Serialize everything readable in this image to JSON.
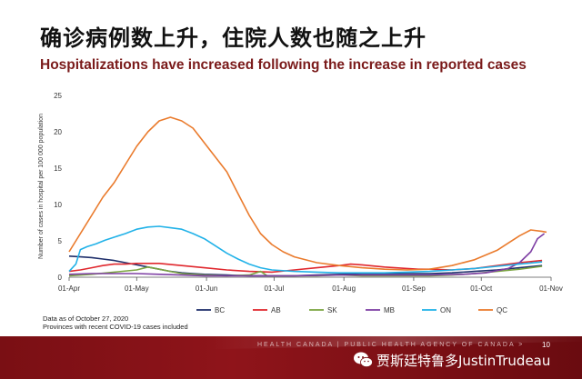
{
  "header": {
    "title_cn": "确诊病例数上升，住院人数也随之上升",
    "subtitle": "Hospitalizations have increased following the increase in reported cases",
    "subtitle_color": "#7a1a1a"
  },
  "chart_data": {
    "type": "line",
    "ylabel": "Number of cases in hospital per 100 000 population",
    "xlabel": "",
    "ylim": [
      0,
      25
    ],
    "yticks": [
      "0",
      "5",
      "10",
      "15",
      "20",
      "25"
    ],
    "x_tick_labels": [
      "01-Apr",
      "01-May",
      "01-Jun",
      "01-Jul",
      "01-Aug",
      "01-Sep",
      "01-Oct",
      "01-Nov"
    ],
    "x_tick_days": [
      0,
      30,
      61,
      91,
      122,
      153,
      183,
      214
    ],
    "grid": false,
    "legend_position": "bottom",
    "series": [
      {
        "name": "BC",
        "color": "#1f2f6b",
        "points": [
          [
            0,
            2.9
          ],
          [
            5,
            2.8
          ],
          [
            10,
            2.7
          ],
          [
            15,
            2.5
          ],
          [
            20,
            2.3
          ],
          [
            25,
            2.0
          ],
          [
            30,
            1.7
          ],
          [
            35,
            1.4
          ],
          [
            40,
            1.1
          ],
          [
            45,
            0.8
          ],
          [
            50,
            0.6
          ],
          [
            55,
            0.5
          ],
          [
            60,
            0.4
          ],
          [
            70,
            0.3
          ],
          [
            80,
            0.2
          ],
          [
            90,
            0.2
          ],
          [
            100,
            0.2
          ],
          [
            110,
            0.3
          ],
          [
            120,
            0.4
          ],
          [
            130,
            0.5
          ],
          [
            140,
            0.5
          ],
          [
            150,
            0.5
          ],
          [
            160,
            0.5
          ],
          [
            170,
            0.6
          ],
          [
            180,
            0.8
          ],
          [
            190,
            1.0
          ],
          [
            200,
            1.3
          ],
          [
            210,
            1.6
          ]
        ]
      },
      {
        "name": "AB",
        "color": "#e0282e",
        "points": [
          [
            0,
            0.8
          ],
          [
            5,
            1.0
          ],
          [
            10,
            1.3
          ],
          [
            15,
            1.6
          ],
          [
            20,
            1.8
          ],
          [
            25,
            1.8
          ],
          [
            30,
            1.9
          ],
          [
            40,
            1.9
          ],
          [
            50,
            1.6
          ],
          [
            60,
            1.3
          ],
          [
            70,
            1.0
          ],
          [
            80,
            0.8
          ],
          [
            90,
            0.7
          ],
          [
            100,
            1.0
          ],
          [
            110,
            1.3
          ],
          [
            120,
            1.6
          ],
          [
            125,
            1.8
          ],
          [
            130,
            1.7
          ],
          [
            140,
            1.4
          ],
          [
            150,
            1.2
          ],
          [
            155,
            1.1
          ],
          [
            160,
            1.1
          ],
          [
            170,
            1.0
          ],
          [
            180,
            1.2
          ],
          [
            190,
            1.6
          ],
          [
            200,
            2.0
          ],
          [
            210,
            2.3
          ]
        ]
      },
      {
        "name": "SK",
        "color": "#7ba541",
        "points": [
          [
            0,
            0.2
          ],
          [
            10,
            0.4
          ],
          [
            20,
            0.7
          ],
          [
            30,
            1.0
          ],
          [
            35,
            1.4
          ],
          [
            40,
            1.1
          ],
          [
            45,
            0.8
          ],
          [
            50,
            0.5
          ],
          [
            60,
            0.3
          ],
          [
            70,
            0.2
          ],
          [
            80,
            0.3
          ],
          [
            85,
            0.8
          ],
          [
            88,
            0.2
          ],
          [
            100,
            0.2
          ],
          [
            110,
            0.2
          ],
          [
            120,
            0.3
          ],
          [
            130,
            0.2
          ],
          [
            140,
            0.2
          ],
          [
            150,
            0.2
          ],
          [
            160,
            0.2
          ],
          [
            170,
            0.3
          ],
          [
            180,
            0.5
          ],
          [
            190,
            0.8
          ],
          [
            200,
            1.1
          ],
          [
            210,
            1.5
          ]
        ]
      },
      {
        "name": "MB",
        "color": "#7e3fa4",
        "points": [
          [
            0,
            0.4
          ],
          [
            10,
            0.5
          ],
          [
            20,
            0.5
          ],
          [
            30,
            0.5
          ],
          [
            40,
            0.4
          ],
          [
            50,
            0.3
          ],
          [
            60,
            0.2
          ],
          [
            80,
            0.2
          ],
          [
            100,
            0.2
          ],
          [
            120,
            0.3
          ],
          [
            140,
            0.3
          ],
          [
            160,
            0.3
          ],
          [
            175,
            0.4
          ],
          [
            185,
            0.6
          ],
          [
            195,
            1.2
          ],
          [
            200,
            2.0
          ],
          [
            205,
            3.5
          ],
          [
            208,
            5.3
          ],
          [
            211,
            6.0
          ]
        ]
      },
      {
        "name": "ON",
        "color": "#22b2e8",
        "points": [
          [
            0,
            0.8
          ],
          [
            3,
            1.8
          ],
          [
            5,
            3.8
          ],
          [
            8,
            4.2
          ],
          [
            12,
            4.6
          ],
          [
            16,
            5.1
          ],
          [
            20,
            5.5
          ],
          [
            25,
            6.0
          ],
          [
            30,
            6.6
          ],
          [
            35,
            6.9
          ],
          [
            40,
            7.0
          ],
          [
            45,
            6.8
          ],
          [
            50,
            6.6
          ],
          [
            55,
            6.0
          ],
          [
            60,
            5.3
          ],
          [
            65,
            4.3
          ],
          [
            70,
            3.3
          ],
          [
            75,
            2.5
          ],
          [
            80,
            1.8
          ],
          [
            85,
            1.3
          ],
          [
            90,
            1.0
          ],
          [
            100,
            0.8
          ],
          [
            110,
            0.7
          ],
          [
            120,
            0.6
          ],
          [
            130,
            0.6
          ],
          [
            140,
            0.6
          ],
          [
            150,
            0.7
          ],
          [
            160,
            0.8
          ],
          [
            170,
            1.0
          ],
          [
            180,
            1.2
          ],
          [
            190,
            1.5
          ],
          [
            200,
            1.8
          ],
          [
            210,
            2.1
          ]
        ]
      },
      {
        "name": "QC",
        "color": "#ea7b2d",
        "points": [
          [
            0,
            3.5
          ],
          [
            5,
            6.0
          ],
          [
            10,
            8.5
          ],
          [
            15,
            11.0
          ],
          [
            20,
            13.0
          ],
          [
            25,
            15.5
          ],
          [
            30,
            18.0
          ],
          [
            35,
            20.0
          ],
          [
            40,
            21.5
          ],
          [
            45,
            22.0
          ],
          [
            50,
            21.5
          ],
          [
            55,
            20.5
          ],
          [
            60,
            18.5
          ],
          [
            65,
            16.5
          ],
          [
            70,
            14.5
          ],
          [
            75,
            11.5
          ],
          [
            80,
            8.5
          ],
          [
            85,
            6.0
          ],
          [
            90,
            4.5
          ],
          [
            95,
            3.5
          ],
          [
            100,
            2.8
          ],
          [
            110,
            2.0
          ],
          [
            120,
            1.6
          ],
          [
            130,
            1.3
          ],
          [
            140,
            1.1
          ],
          [
            150,
            1.0
          ],
          [
            160,
            1.1
          ],
          [
            170,
            1.6
          ],
          [
            180,
            2.4
          ],
          [
            190,
            3.7
          ],
          [
            195,
            4.7
          ],
          [
            200,
            5.7
          ],
          [
            205,
            6.5
          ],
          [
            210,
            6.3
          ],
          [
            212,
            6.2
          ]
        ]
      }
    ]
  },
  "notes": {
    "line1": "Data as of October 27, 2020",
    "line2": "Provinces with recent COVID-19 cases included"
  },
  "footer": {
    "text": "HEALTH CANADA  |  PUBLIC HEALTH AGENCY OF CANADA  >",
    "page_number": "10",
    "watermark": "贾斯廷特鲁多JustinTrudeau",
    "band_color": "#7a0f14"
  }
}
